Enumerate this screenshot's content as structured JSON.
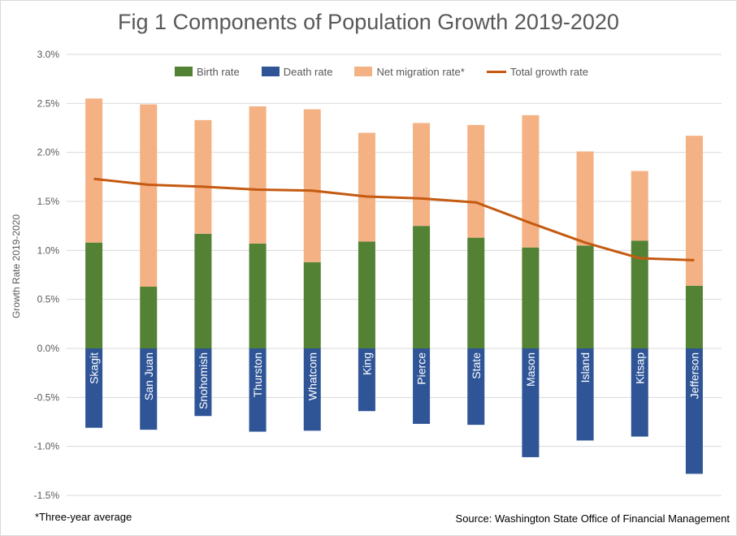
{
  "title": "Fig 1 Components of Population Growth 2019-2020",
  "footnote": "*Three-year average",
  "source": "Source: Washington State Office of Financial Management",
  "colors": {
    "birth": "#548235",
    "death": "#2f5597",
    "migration": "#f4b183",
    "total": "#c55a11",
    "grid": "#d9d9d9",
    "axis_text": "#595959"
  },
  "chart_data": {
    "type": "bar",
    "stacked": true,
    "title": "Fig 1 Components of Population Growth 2019-2020",
    "xlabel": "",
    "ylabel": "Growth Rate 2019-2020",
    "ylim": [
      -1.5,
      3.0
    ],
    "yticks": [
      "3.0%",
      "2.5%",
      "2.0%",
      "1.5%",
      "1.0%",
      "0.5%",
      "0.0%",
      "-0.5%",
      "-1.0%",
      "-1.5%"
    ],
    "ytick_values": [
      3.0,
      2.5,
      2.0,
      1.5,
      1.0,
      0.5,
      0.0,
      -0.5,
      -1.0,
      -1.5
    ],
    "grid": true,
    "legend_position": "top",
    "categories": [
      "Skagit",
      "San Juan",
      "Snohomish",
      "Thurston",
      "Whatcom",
      "King",
      "Pierce",
      "State",
      "Mason",
      "Island",
      "Kitsap",
      "Jefferson"
    ],
    "series": [
      {
        "name": "Birth rate",
        "kind": "bar",
        "values": [
          1.08,
          0.63,
          1.17,
          1.07,
          0.88,
          1.09,
          1.25,
          1.13,
          1.03,
          1.05,
          1.1,
          0.64
        ]
      },
      {
        "name": "Death rate",
        "kind": "bar",
        "values": [
          -0.81,
          -0.83,
          -0.69,
          -0.85,
          -0.84,
          -0.64,
          -0.77,
          -0.78,
          -1.11,
          -0.94,
          -0.9,
          -1.28
        ]
      },
      {
        "name": "Net migration rate*",
        "kind": "bar",
        "values": [
          1.47,
          1.86,
          1.16,
          1.4,
          1.56,
          1.11,
          1.05,
          1.15,
          1.35,
          0.96,
          0.71,
          1.53
        ]
      },
      {
        "name": "Total growth rate",
        "kind": "line",
        "values": [
          1.73,
          1.67,
          1.65,
          1.62,
          1.61,
          1.55,
          1.53,
          1.49,
          1.28,
          1.08,
          0.92,
          0.9
        ]
      }
    ]
  }
}
